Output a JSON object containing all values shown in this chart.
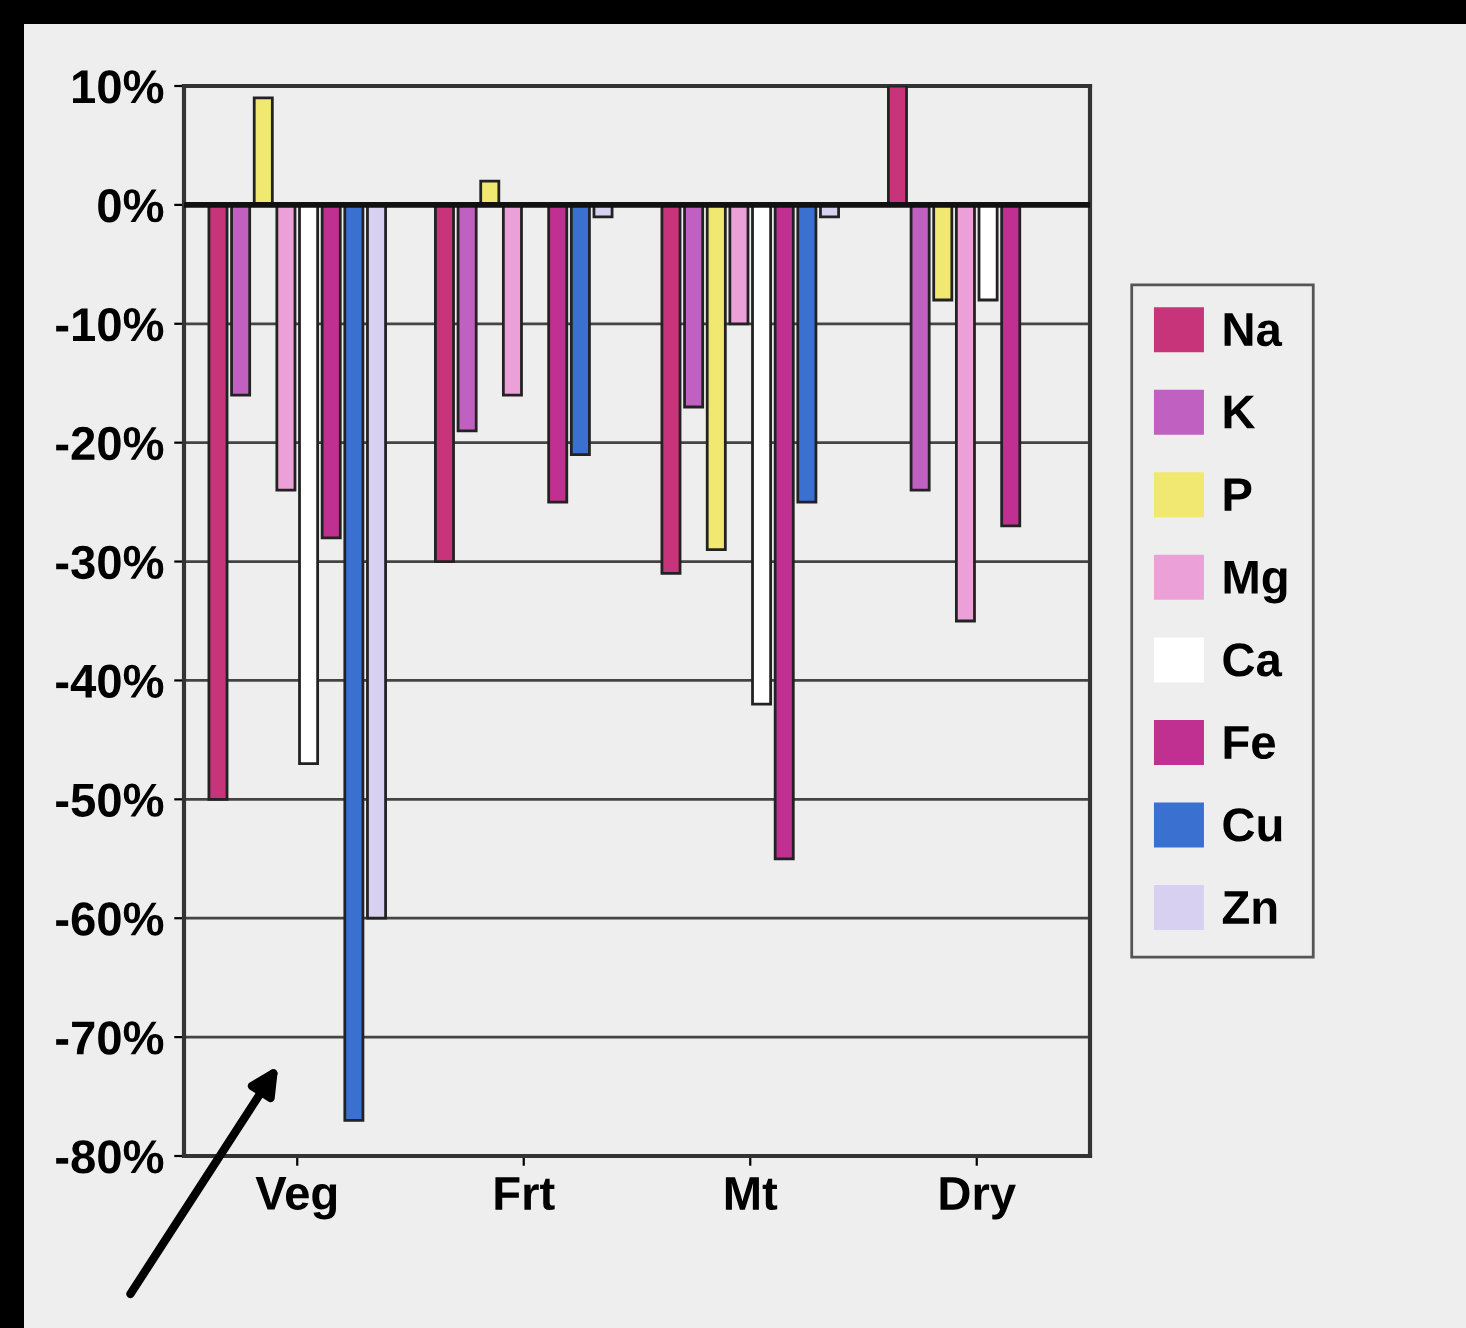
{
  "chart_data": {
    "type": "bar",
    "categories": [
      "Veg",
      "Frt",
      "Mt",
      "Dry"
    ],
    "series": [
      {
        "name": "Na",
        "color": "#c8347a",
        "values": [
          -50,
          -30,
          -31,
          10
        ]
      },
      {
        "name": "K",
        "color": "#c060c0",
        "values": [
          -16,
          -19,
          -17,
          -24
        ]
      },
      {
        "name": "P",
        "color": "#f0e870",
        "values": [
          9,
          2,
          -29,
          -8
        ]
      },
      {
        "name": "Mg",
        "color": "#eca0d8",
        "values": [
          -24,
          -16,
          -10,
          -35
        ]
      },
      {
        "name": "Ca",
        "color": "#ffffff",
        "values": [
          -47,
          null,
          -42,
          -8
        ]
      },
      {
        "name": "Fe",
        "color": "#c03090",
        "values": [
          -28,
          -25,
          -55,
          -27
        ]
      },
      {
        "name": "Cu",
        "color": "#3a70d0",
        "values": [
          -77,
          -21,
          -25,
          null
        ]
      },
      {
        "name": "Zn",
        "color": "#d8d0f0",
        "values": [
          -60,
          -1,
          -1,
          null
        ]
      }
    ],
    "ylim": [
      -80,
      10
    ],
    "yticks": [
      {
        "value": 10,
        "label": "10%"
      },
      {
        "value": 0,
        "label": "0%"
      },
      {
        "value": -10,
        "label": "-10%"
      },
      {
        "value": -20,
        "label": "-20%"
      },
      {
        "value": -30,
        "label": "-30%"
      },
      {
        "value": -40,
        "label": "-40%"
      },
      {
        "value": -50,
        "label": "-50%"
      },
      {
        "value": -60,
        "label": "-60%"
      },
      {
        "value": -70,
        "label": "-70%"
      },
      {
        "value": -80,
        "label": "-80%"
      }
    ],
    "grid": "y",
    "legend": "right"
  }
}
